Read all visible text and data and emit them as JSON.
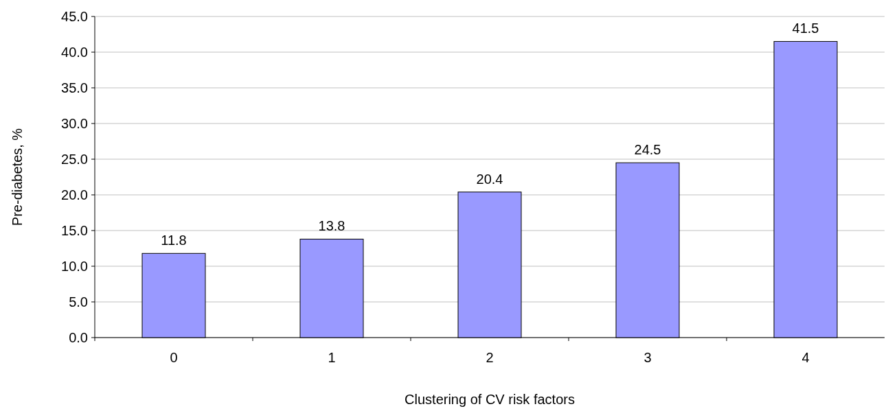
{
  "chart_data": {
    "type": "bar",
    "xlabel": "Clustering of CV risk factors",
    "ylabel": "Pre-diabetes, %",
    "categories": [
      "0",
      "1",
      "2",
      "3",
      "4"
    ],
    "values": [
      11.8,
      13.8,
      20.4,
      24.5,
      41.5
    ],
    "color": "#9999ff",
    "data_labels": true,
    "grid": "y",
    "ylim": [
      0,
      45
    ],
    "yticks": [
      {
        "value": 0,
        "label": "0.0"
      },
      {
        "value": 5,
        "label": "5.0"
      },
      {
        "value": 10,
        "label": "10.0"
      },
      {
        "value": 15,
        "label": "15.0"
      },
      {
        "value": 20,
        "label": "20.0"
      },
      {
        "value": 25,
        "label": "25.0"
      },
      {
        "value": 30,
        "label": "30.0"
      },
      {
        "value": 35,
        "label": "35.0"
      },
      {
        "value": 40,
        "label": "40.0"
      },
      {
        "value": 45,
        "label": "45.0"
      }
    ]
  }
}
